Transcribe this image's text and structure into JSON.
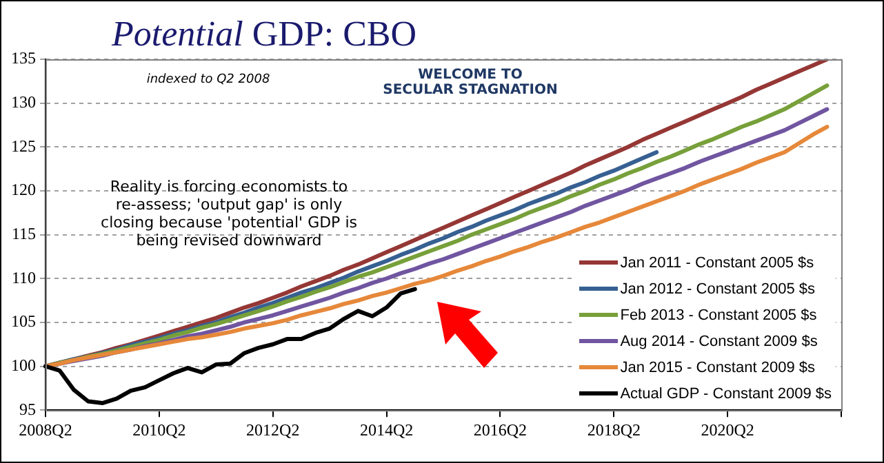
{
  "chart_data": {
    "type": "line",
    "title": "Potential GDP: CBO",
    "annotations": [
      "indexed to Q2 2008",
      "WELCOME TO SECULAR STAGNATION",
      "Reality is forcing economists to re-assess; 'output gap' is only closing because 'potential' GDP is being revised downward"
    ],
    "categories": [
      "2008Q2",
      null,
      null,
      null,
      null,
      null,
      null,
      null,
      "2010Q2",
      null,
      null,
      null,
      null,
      null,
      null,
      null,
      "2012Q2",
      null,
      null,
      null,
      null,
      null,
      null,
      null,
      "2014Q2",
      null,
      null,
      null,
      null,
      null,
      null,
      null,
      "2016Q2",
      null,
      null,
      null,
      null,
      null,
      null,
      null,
      "2018Q2",
      null,
      null,
      null,
      null,
      null,
      null,
      null,
      "2020Q2",
      null,
      null,
      null,
      null,
      null,
      null,
      null,
      null
    ],
    "ylim": [
      95,
      135
    ],
    "yticks": [
      95,
      100,
      105,
      110,
      115,
      120,
      125,
      130,
      135
    ],
    "grid": "y",
    "legend": "bottom right",
    "marker": "none",
    "line_style": "solid",
    "series": [
      {
        "name": "Jan 2011 - Constant 2005 $s",
        "color": "#953735",
        "values": [
          100,
          100.4,
          100.8,
          101.2,
          101.6,
          102.1,
          102.5,
          103.0,
          103.5,
          104.0,
          104.5,
          105.0,
          105.5,
          106.1,
          106.7,
          107.2,
          107.8,
          108.4,
          109.1,
          109.7,
          110.3,
          111.0,
          111.6,
          112.3,
          113.0,
          113.7,
          114.4,
          115.1,
          115.8,
          116.5,
          117.2,
          117.9,
          118.6,
          119.3,
          120.0,
          120.7,
          121.4,
          122.1,
          122.9,
          123.6,
          124.3,
          125.0,
          125.8,
          126.5,
          127.2,
          127.9,
          128.6,
          129.3,
          130.0,
          130.7,
          131.5,
          132.2,
          132.9,
          133.6,
          134.3,
          135.0,
          null
        ]
      },
      {
        "name": "Jan 2012 - Constant 2005 $s",
        "color": "#376092",
        "values": [
          100,
          100.4,
          100.8,
          101.1,
          101.5,
          101.9,
          102.4,
          102.8,
          103.2,
          103.7,
          104.1,
          104.6,
          105.0,
          105.6,
          106.1,
          106.7,
          107.2,
          107.8,
          108.4,
          108.9,
          109.5,
          110.1,
          110.8,
          111.4,
          112.0,
          112.7,
          113.3,
          114.0,
          114.6,
          115.3,
          115.9,
          116.6,
          117.2,
          117.8,
          118.5,
          119.1,
          119.7,
          120.4,
          121.0,
          121.7,
          122.3,
          123.0,
          123.7,
          124.4,
          null,
          null,
          null,
          null,
          null,
          null,
          null,
          null,
          null,
          null,
          null,
          null,
          null
        ]
      },
      {
        "name": "Feb 2013 - Constant 2005 $s",
        "color": "#77a03a",
        "values": [
          100,
          100.4,
          100.7,
          101.1,
          101.4,
          101.8,
          102.2,
          102.6,
          103.0,
          103.5,
          103.9,
          104.4,
          104.8,
          105.3,
          105.8,
          106.3,
          106.8,
          107.4,
          107.9,
          108.5,
          109.0,
          109.6,
          110.2,
          110.7,
          111.3,
          111.9,
          112.5,
          113.1,
          113.7,
          114.3,
          115.0,
          115.6,
          116.2,
          116.8,
          117.5,
          118.1,
          118.7,
          119.4,
          120.0,
          120.7,
          121.3,
          122.0,
          122.6,
          123.3,
          123.9,
          124.6,
          125.3,
          125.9,
          126.6,
          127.3,
          127.9,
          128.6,
          129.3,
          130.2,
          131.1,
          132.0,
          null
        ]
      },
      {
        "name": "Aug 2014 - Constant 2009 $s",
        "color": "#7055a0",
        "values": [
          100,
          100.3,
          100.6,
          100.9,
          101.2,
          101.6,
          101.9,
          102.3,
          102.6,
          103.0,
          103.4,
          103.7,
          104.1,
          104.5,
          105.0,
          105.4,
          105.8,
          106.3,
          106.8,
          107.3,
          107.8,
          108.4,
          108.9,
          109.5,
          110.0,
          110.6,
          111.1,
          111.7,
          112.2,
          112.8,
          113.4,
          114.0,
          114.6,
          115.2,
          115.8,
          116.4,
          117.0,
          117.6,
          118.3,
          118.9,
          119.5,
          120.1,
          120.8,
          121.4,
          122.0,
          122.6,
          123.3,
          123.9,
          124.5,
          125.1,
          125.7,
          126.3,
          126.9,
          127.7,
          128.5,
          129.3,
          null
        ]
      },
      {
        "name": "Jan 2015 - Constant 2009 $s",
        "color": "#e6883a",
        "values": [
          100,
          100.3,
          100.7,
          101.0,
          101.3,
          101.6,
          101.9,
          102.2,
          102.5,
          102.8,
          103.1,
          103.3,
          103.6,
          103.9,
          104.3,
          104.6,
          104.9,
          105.3,
          105.8,
          106.2,
          106.6,
          107.1,
          107.5,
          108.0,
          108.4,
          108.9,
          109.4,
          109.8,
          110.3,
          110.9,
          111.4,
          112.0,
          112.5,
          113.1,
          113.6,
          114.2,
          114.7,
          115.3,
          115.9,
          116.4,
          117.0,
          117.6,
          118.2,
          118.8,
          119.4,
          120.0,
          120.7,
          121.3,
          121.9,
          122.5,
          123.2,
          123.8,
          124.4,
          125.4,
          126.4,
          127.3,
          null
        ]
      },
      {
        "name": "Actual GDP - Constant 2009 $s",
        "color": "#000000",
        "values": [
          100,
          99.5,
          97.3,
          96.0,
          95.8,
          96.3,
          97.2,
          97.6,
          98.4,
          99.2,
          99.8,
          99.3,
          100.2,
          100.3,
          101.5,
          102.1,
          102.5,
          103.1,
          103.1,
          103.8,
          104.3,
          105.4,
          106.3,
          105.7,
          106.7,
          108.3,
          108.8,
          null,
          null,
          null,
          null,
          null,
          null,
          null,
          null,
          null,
          null,
          null,
          null,
          null,
          null,
          null,
          null,
          null,
          null,
          null,
          null,
          null,
          null,
          null,
          null,
          null,
          null,
          null,
          null,
          null,
          null
        ]
      }
    ]
  }
}
